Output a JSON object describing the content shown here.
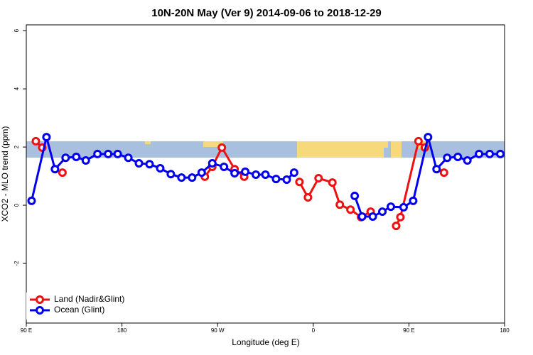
{
  "chart_data": {
    "type": "line",
    "title": "10N-20N May (Ver 9)   2014-09-06 to 2018-12-29",
    "x_label": "Longitude (deg E)",
    "y_label": "XCO2 - MLO trend (ppm)",
    "xlim": [
      90,
      540
    ],
    "ylim": [
      -4.05,
      6.2
    ],
    "xticks": [
      {
        "value": 90,
        "label": "90 E"
      },
      180,
      {
        "value": 270,
        "label": "90 W"
      },
      {
        "value": 360,
        "label": "0"
      },
      {
        "value": 450,
        "label": "90 E"
      },
      {
        "value": 540,
        "label": "180"
      }
    ],
    "yticks": [
      -2,
      0,
      2,
      4,
      6
    ],
    "legend": "bottom-left",
    "series": [
      {
        "name": "Land (Nadir&Glint)",
        "color": "#ee1111",
        "x": [
          99,
          105,
          null,
          124,
          null,
          258,
          265,
          274,
          286,
          295,
          null,
          347,
          355,
          365,
          378,
          385,
          395,
          405,
          414,
          null,
          438,
          442,
          459,
          465,
          null,
          483
        ],
        "values": [
          2.2,
          1.98,
          null,
          1.12,
          null,
          0.98,
          1.32,
          1.98,
          1.24,
          0.98,
          null,
          0.8,
          0.27,
          0.93,
          0.78,
          0.02,
          -0.15,
          -0.41,
          -0.22,
          null,
          -0.71,
          -0.41,
          2.2,
          1.98,
          null,
          1.12
        ]
      },
      {
        "name": "Ocean (Glint)",
        "color": "#0000ee",
        "x": [
          95,
          109,
          117,
          127,
          137,
          146,
          157,
          167,
          176,
          186,
          196,
          206,
          216,
          226,
          236,
          246,
          255,
          265,
          276,
          286,
          296,
          306,
          315,
          325,
          335,
          342,
          null,
          399,
          406,
          416,
          425,
          433,
          445,
          454,
          468,
          476,
          486,
          496,
          505,
          516,
          526,
          536
        ],
        "values": [
          0.15,
          2.34,
          1.24,
          1.63,
          1.66,
          1.54,
          1.76,
          1.76,
          1.76,
          1.63,
          1.44,
          1.41,
          1.27,
          1.07,
          0.95,
          0.95,
          1.12,
          1.44,
          1.32,
          1.1,
          1.15,
          1.05,
          1.05,
          0.9,
          0.88,
          1.12,
          null,
          0.32,
          -0.39,
          -0.39,
          -0.22,
          -0.05,
          -0.07,
          0.15,
          2.34,
          1.24,
          1.63,
          1.66,
          1.54,
          1.76,
          1.76,
          1.76
        ]
      }
    ]
  }
}
